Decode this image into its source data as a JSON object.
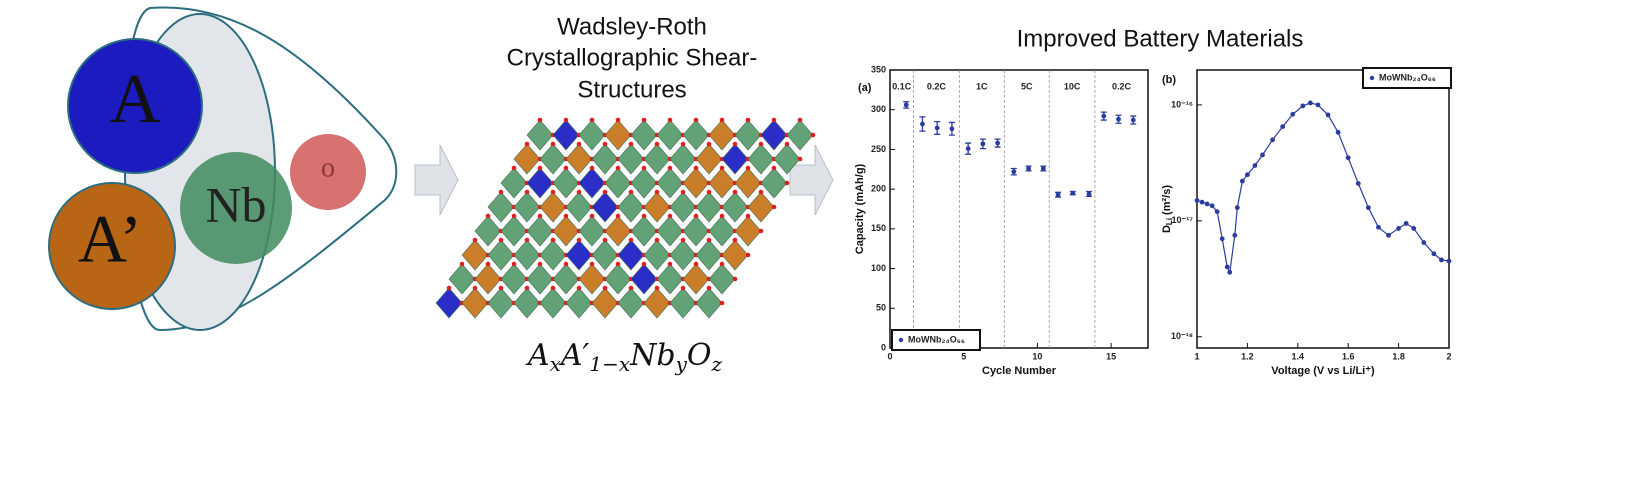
{
  "diagram": {
    "circles": [
      "A",
      "A’",
      "Nb",
      "o"
    ],
    "structure_title": [
      "Wadsley-Roth",
      "Crystallographic Shear-",
      "Structures"
    ],
    "formula": [
      {
        "base": "A",
        "sub": "x"
      },
      {
        "base": "A′",
        "sub": "1−x"
      },
      {
        "base": "Nb",
        "sub": "y"
      },
      {
        "base": "O",
        "sub": "z"
      }
    ],
    "panel_title": "Improved Battery Materials"
  },
  "chart_data": [
    {
      "type": "scatter",
      "panel": "(a)",
      "xlabel": "Cycle Number",
      "ylabel": "Capacity (mAh/g)",
      "legend": "MoWNb₂₄O₆₆",
      "legend_position": "lower left",
      "color": "#2b3d9e",
      "x": [
        1.1,
        2.2,
        3.2,
        4.2,
        5.3,
        6.3,
        7.3,
        8.4,
        9.4,
        10.4,
        11.4,
        12.4,
        13.5,
        14.5,
        15.5,
        16.5
      ],
      "values": [
        306,
        282,
        277,
        276,
        251,
        257,
        258,
        222,
        226,
        226,
        193,
        195,
        194,
        292,
        288,
        287
      ],
      "errors": [
        4,
        9,
        8,
        8,
        7,
        6,
        5,
        4,
        3,
        3,
        3,
        2,
        3,
        5,
        5,
        5
      ],
      "regions": [
        {
          "label": "0.1C",
          "range": [
            0,
            1.6
          ]
        },
        {
          "label": "0.2C",
          "range": [
            1.6,
            4.7
          ]
        },
        {
          "label": "1C",
          "range": [
            4.7,
            7.75
          ]
        },
        {
          "label": "5C",
          "range": [
            7.75,
            10.8
          ]
        },
        {
          "label": "10C",
          "range": [
            10.8,
            13.9
          ]
        },
        {
          "label": "0.2C",
          "range": [
            13.9,
            17.5
          ]
        }
      ],
      "xlim": [
        0,
        17.5
      ],
      "xticks": [
        0,
        5,
        10,
        15
      ],
      "ylim": [
        0,
        350
      ],
      "yticks": [
        0,
        50,
        100,
        150,
        200,
        250,
        300,
        350
      ]
    },
    {
      "type": "line",
      "panel": "(b)",
      "xlabel": "Voltage (V vs Li/Li⁺)",
      "ylabel": [
        "D",
        "Li",
        "(m²/s)"
      ],
      "legend": "MoWNb₂₄O₆₆",
      "legend_position": "upper right",
      "color": "#2b3d9e",
      "log_y": true,
      "x": [
        1.0,
        1.02,
        1.04,
        1.06,
        1.08,
        1.1,
        1.12,
        1.13,
        1.15,
        1.16,
        1.18,
        1.2,
        1.23,
        1.26,
        1.3,
        1.34,
        1.38,
        1.42,
        1.45,
        1.48,
        1.52,
        1.56,
        1.6,
        1.64,
        1.68,
        1.72,
        1.76,
        1.8,
        1.83,
        1.86,
        1.9,
        1.94,
        1.97,
        2.0
      ],
      "values": [
        1.5e-17,
        1.45e-17,
        1.4e-17,
        1.35e-17,
        1.2e-17,
        7e-18,
        4e-18,
        3.6e-18,
        7.5e-18,
        1.3e-17,
        2.2e-17,
        2.5e-17,
        3e-17,
        3.7e-17,
        5e-17,
        6.5e-17,
        8.3e-17,
        9.8e-17,
        1.04e-16,
        1e-16,
        8.2e-17,
        5.8e-17,
        3.5e-17,
        2.1e-17,
        1.3e-17,
        8.8e-18,
        7.5e-18,
        8.6e-18,
        9.5e-18,
        8.6e-18,
        6.5e-18,
        5.2e-18,
        4.6e-18,
        4.5e-18
      ],
      "xlim": [
        1,
        2
      ],
      "xticks": [
        1,
        1.2,
        1.4,
        1.6,
        1.8,
        2
      ],
      "ylim": [
        8e-19,
        2e-16
      ],
      "yticks": [
        {
          "value": 1e-18,
          "label": "10⁻¹⁸"
        },
        {
          "value": 1e-17,
          "label": "10⁻¹⁷"
        },
        {
          "value": 1e-16,
          "label": "10⁻¹⁶"
        }
      ]
    }
  ]
}
